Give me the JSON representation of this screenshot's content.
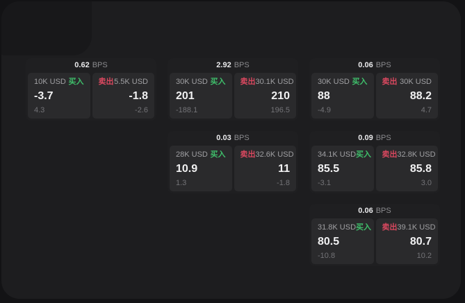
{
  "labels": {
    "unit": "BPS",
    "buy": "买入",
    "sell": "卖出"
  },
  "colors": {
    "buy_green": "#3fbf6b",
    "sell_red": "#d9485f",
    "canvas_bg": "#1d1d1f",
    "card_bg": "#1f1f21",
    "panel_bg": "#2a2a2c"
  },
  "cards": [
    {
      "bps": "0.62",
      "buy": {
        "amount": "10K USD",
        "value": "-3.7",
        "delta": "4.3"
      },
      "sell": {
        "amount": "5.5K USD",
        "value": "-1.8",
        "delta": "-2.6"
      }
    },
    {
      "bps": "2.92",
      "buy": {
        "amount": "30K USD",
        "value": "201",
        "delta": "-188.1"
      },
      "sell": {
        "amount": "30.1K USD",
        "value": "210",
        "delta": "196.5"
      }
    },
    {
      "bps": "0.06",
      "buy": {
        "amount": "30K USD",
        "value": "88",
        "delta": "-4.9"
      },
      "sell": {
        "amount": "30K USD",
        "value": "88.2",
        "delta": "4.7"
      }
    },
    {
      "bps": "0.03",
      "buy": {
        "amount": "28K USD",
        "value": "10.9",
        "delta": "1.3"
      },
      "sell": {
        "amount": "32.6K USD",
        "value": "11",
        "delta": "-1.8"
      }
    },
    {
      "bps": "0.09",
      "buy": {
        "amount": "34.1K USD",
        "value": "85.5",
        "delta": "-3.1"
      },
      "sell": {
        "amount": "32.8K USD",
        "value": "85.8",
        "delta": "3.0"
      }
    },
    {
      "bps": "0.06",
      "buy": {
        "amount": "31.8K USD",
        "value": "80.5",
        "delta": "-10.8"
      },
      "sell": {
        "amount": "39.1K USD",
        "value": "80.7",
        "delta": "10.2"
      }
    }
  ]
}
